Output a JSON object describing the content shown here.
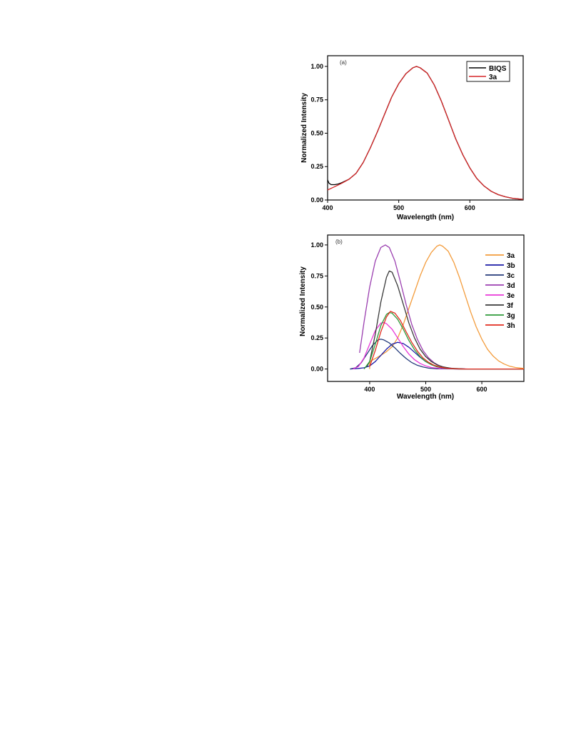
{
  "chart_data": [
    {
      "type": "line",
      "panel_label": "(a)",
      "xlabel": "Wavelength (nm)",
      "ylabel": "Normalized Intensity",
      "xlim": [
        400,
        675
      ],
      "ylim": [
        0,
        1.08
      ],
      "xticks": [
        400,
        500,
        600
      ],
      "yticks": [
        "0.00",
        "0.25",
        "0.50",
        "0.75",
        "1.00"
      ],
      "legend_position": "top-right",
      "legend_box": true,
      "series": [
        {
          "name": "BIQS",
          "color": "#000000",
          "points": [
            [
              400,
              0.15
            ],
            [
              402,
              0.125
            ],
            [
              405,
              0.115
            ],
            [
              410,
              0.115
            ],
            [
              415,
              0.12
            ],
            [
              420,
              0.13
            ],
            [
              430,
              0.155
            ],
            [
              440,
              0.2
            ],
            [
              450,
              0.28
            ],
            [
              460,
              0.39
            ],
            [
              470,
              0.51
            ],
            [
              480,
              0.64
            ],
            [
              490,
              0.77
            ],
            [
              500,
              0.87
            ],
            [
              510,
              0.945
            ],
            [
              520,
              0.99
            ],
            [
              525,
              1.0
            ],
            [
              530,
              0.99
            ],
            [
              540,
              0.95
            ],
            [
              550,
              0.86
            ],
            [
              560,
              0.74
            ],
            [
              570,
              0.6
            ],
            [
              580,
              0.46
            ],
            [
              590,
              0.34
            ],
            [
              600,
              0.24
            ],
            [
              610,
              0.16
            ],
            [
              620,
              0.105
            ],
            [
              630,
              0.065
            ],
            [
              640,
              0.04
            ],
            [
              650,
              0.024
            ],
            [
              660,
              0.013
            ],
            [
              670,
              0.007
            ],
            [
              675,
              0.005
            ]
          ]
        },
        {
          "name": "3a",
          "color": "#d62728",
          "points": [
            [
              400,
              0.075
            ],
            [
              410,
              0.1
            ],
            [
              420,
              0.125
            ],
            [
              430,
              0.155
            ],
            [
              440,
              0.2
            ],
            [
              450,
              0.28
            ],
            [
              460,
              0.39
            ],
            [
              470,
              0.51
            ],
            [
              480,
              0.64
            ],
            [
              490,
              0.77
            ],
            [
              500,
              0.87
            ],
            [
              510,
              0.945
            ],
            [
              520,
              0.99
            ],
            [
              525,
              1.0
            ],
            [
              530,
              0.99
            ],
            [
              540,
              0.95
            ],
            [
              550,
              0.86
            ],
            [
              560,
              0.74
            ],
            [
              570,
              0.6
            ],
            [
              580,
              0.46
            ],
            [
              590,
              0.34
            ],
            [
              600,
              0.24
            ],
            [
              610,
              0.16
            ],
            [
              620,
              0.105
            ],
            [
              630,
              0.065
            ],
            [
              640,
              0.04
            ],
            [
              650,
              0.024
            ],
            [
              660,
              0.013
            ],
            [
              670,
              0.007
            ],
            [
              675,
              0.005
            ]
          ]
        }
      ]
    },
    {
      "type": "line",
      "panel_label": "(b)",
      "xlabel": "Wavelength (nm)",
      "ylabel": "Normalized Intensity",
      "xlim": [
        325,
        675
      ],
      "ylim": [
        -0.1,
        1.08
      ],
      "xticks": [
        400,
        500,
        600
      ],
      "yticks": [
        "0.00",
        "0.25",
        "0.50",
        "0.75",
        "1.00"
      ],
      "legend_position": "top-right",
      "legend_box": false,
      "series": [
        {
          "name": "3a",
          "color": "#f39c3c",
          "points": [
            [
              400,
              0.0
            ],
            [
              400,
              0.05
            ],
            [
              402,
              0.065
            ],
            [
              410,
              0.085
            ],
            [
              420,
              0.11
            ],
            [
              430,
              0.14
            ],
            [
              440,
              0.18
            ],
            [
              450,
              0.25
            ],
            [
              460,
              0.36
            ],
            [
              470,
              0.49
            ],
            [
              480,
              0.62
            ],
            [
              490,
              0.75
            ],
            [
              500,
              0.86
            ],
            [
              510,
              0.94
            ],
            [
              520,
              0.99
            ],
            [
              525,
              1.0
            ],
            [
              530,
              0.99
            ],
            [
              540,
              0.95
            ],
            [
              550,
              0.86
            ],
            [
              560,
              0.74
            ],
            [
              570,
              0.6
            ],
            [
              580,
              0.46
            ],
            [
              590,
              0.34
            ],
            [
              600,
              0.24
            ],
            [
              610,
              0.16
            ],
            [
              620,
              0.105
            ],
            [
              630,
              0.065
            ],
            [
              640,
              0.04
            ],
            [
              650,
              0.022
            ],
            [
              660,
              0.012
            ],
            [
              675,
              0.005
            ]
          ]
        },
        {
          "name": "3b",
          "color": "#1a1aa6",
          "points": [
            [
              365,
              0.0
            ],
            [
              380,
              0.005
            ],
            [
              390,
              0.01
            ],
            [
              400,
              0.025
            ],
            [
              410,
              0.06
            ],
            [
              420,
              0.11
            ],
            [
              430,
              0.16
            ],
            [
              440,
              0.2
            ],
            [
              450,
              0.215
            ],
            [
              460,
              0.205
            ],
            [
              470,
              0.175
            ],
            [
              480,
              0.135
            ],
            [
              490,
              0.095
            ],
            [
              500,
              0.06
            ],
            [
              510,
              0.035
            ],
            [
              520,
              0.018
            ],
            [
              530,
              0.008
            ],
            [
              540,
              0.003
            ],
            [
              560,
              0.0
            ],
            [
              600,
              0.0
            ],
            [
              675,
              0.0
            ]
          ]
        },
        {
          "name": "3c",
          "color": "#243a7a",
          "points": [
            [
              365,
              0.0
            ],
            [
              375,
              0.01
            ],
            [
              385,
              0.05
            ],
            [
              395,
              0.12
            ],
            [
              405,
              0.19
            ],
            [
              415,
              0.235
            ],
            [
              420,
              0.24
            ],
            [
              425,
              0.235
            ],
            [
              435,
              0.21
            ],
            [
              445,
              0.17
            ],
            [
              455,
              0.125
            ],
            [
              465,
              0.085
            ],
            [
              475,
              0.052
            ],
            [
              485,
              0.03
            ],
            [
              495,
              0.016
            ],
            [
              505,
              0.007
            ],
            [
              520,
              0.002
            ],
            [
              560,
              0.0
            ],
            [
              675,
              0.0
            ]
          ]
        },
        {
          "name": "3d",
          "color": "#9b3fb0",
          "points": [
            [
              382,
              0.13
            ],
            [
              390,
              0.38
            ],
            [
              400,
              0.66
            ],
            [
              410,
              0.87
            ],
            [
              420,
              0.98
            ],
            [
              428,
              1.0
            ],
            [
              435,
              0.98
            ],
            [
              445,
              0.87
            ],
            [
              455,
              0.7
            ],
            [
              465,
              0.52
            ],
            [
              475,
              0.36
            ],
            [
              485,
              0.24
            ],
            [
              495,
              0.15
            ],
            [
              505,
              0.09
            ],
            [
              515,
              0.05
            ],
            [
              525,
              0.025
            ],
            [
              535,
              0.012
            ],
            [
              550,
              0.004
            ],
            [
              575,
              0.0
            ],
            [
              675,
              0.0
            ]
          ]
        },
        {
          "name": "3e",
          "color": "#e838d8",
          "points": [
            [
              370,
              0.0
            ],
            [
              380,
              0.02
            ],
            [
              390,
              0.09
            ],
            [
              400,
              0.2
            ],
            [
              410,
              0.31
            ],
            [
              420,
              0.37
            ],
            [
              425,
              0.375
            ],
            [
              430,
              0.365
            ],
            [
              440,
              0.32
            ],
            [
              450,
              0.25
            ],
            [
              460,
              0.18
            ],
            [
              470,
              0.12
            ],
            [
              480,
              0.075
            ],
            [
              490,
              0.045
            ],
            [
              500,
              0.025
            ],
            [
              510,
              0.012
            ],
            [
              525,
              0.004
            ],
            [
              560,
              0.0
            ],
            [
              675,
              0.0
            ]
          ]
        },
        {
          "name": "3f",
          "color": "#3a3a3a",
          "points": [
            [
              395,
              0.02
            ],
            [
              400,
              0.06
            ],
            [
              410,
              0.28
            ],
            [
              420,
              0.54
            ],
            [
              430,
              0.74
            ],
            [
              435,
              0.79
            ],
            [
              440,
              0.78
            ],
            [
              450,
              0.67
            ],
            [
              460,
              0.52
            ],
            [
              470,
              0.37
            ],
            [
              480,
              0.25
            ],
            [
              490,
              0.16
            ],
            [
              500,
              0.1
            ],
            [
              510,
              0.06
            ],
            [
              520,
              0.034
            ],
            [
              530,
              0.018
            ],
            [
              545,
              0.006
            ],
            [
              570,
              0.001
            ],
            [
              675,
              0.0
            ]
          ]
        },
        {
          "name": "3g",
          "color": "#2e9a3a",
          "points": [
            [
              390,
              0.0
            ],
            [
              400,
              0.06
            ],
            [
              410,
              0.2
            ],
            [
              420,
              0.35
            ],
            [
              430,
              0.44
            ],
            [
              435,
              0.455
            ],
            [
              440,
              0.45
            ],
            [
              450,
              0.4
            ],
            [
              460,
              0.32
            ],
            [
              470,
              0.23
            ],
            [
              480,
              0.155
            ],
            [
              490,
              0.1
            ],
            [
              500,
              0.06
            ],
            [
              510,
              0.035
            ],
            [
              520,
              0.018
            ],
            [
              535,
              0.006
            ],
            [
              560,
              0.0
            ],
            [
              675,
              0.0
            ]
          ]
        },
        {
          "name": "3h",
          "color": "#e22b1e",
          "points": [
            [
              400,
              0.02
            ],
            [
              410,
              0.15
            ],
            [
              420,
              0.3
            ],
            [
              430,
              0.42
            ],
            [
              437,
              0.465
            ],
            [
              445,
              0.45
            ],
            [
              455,
              0.39
            ],
            [
              465,
              0.3
            ],
            [
              475,
              0.215
            ],
            [
              485,
              0.145
            ],
            [
              495,
              0.09
            ],
            [
              505,
              0.054
            ],
            [
              515,
              0.03
            ],
            [
              525,
              0.016
            ],
            [
              540,
              0.005
            ],
            [
              565,
              0.0
            ],
            [
              675,
              0.0
            ]
          ]
        }
      ]
    }
  ]
}
